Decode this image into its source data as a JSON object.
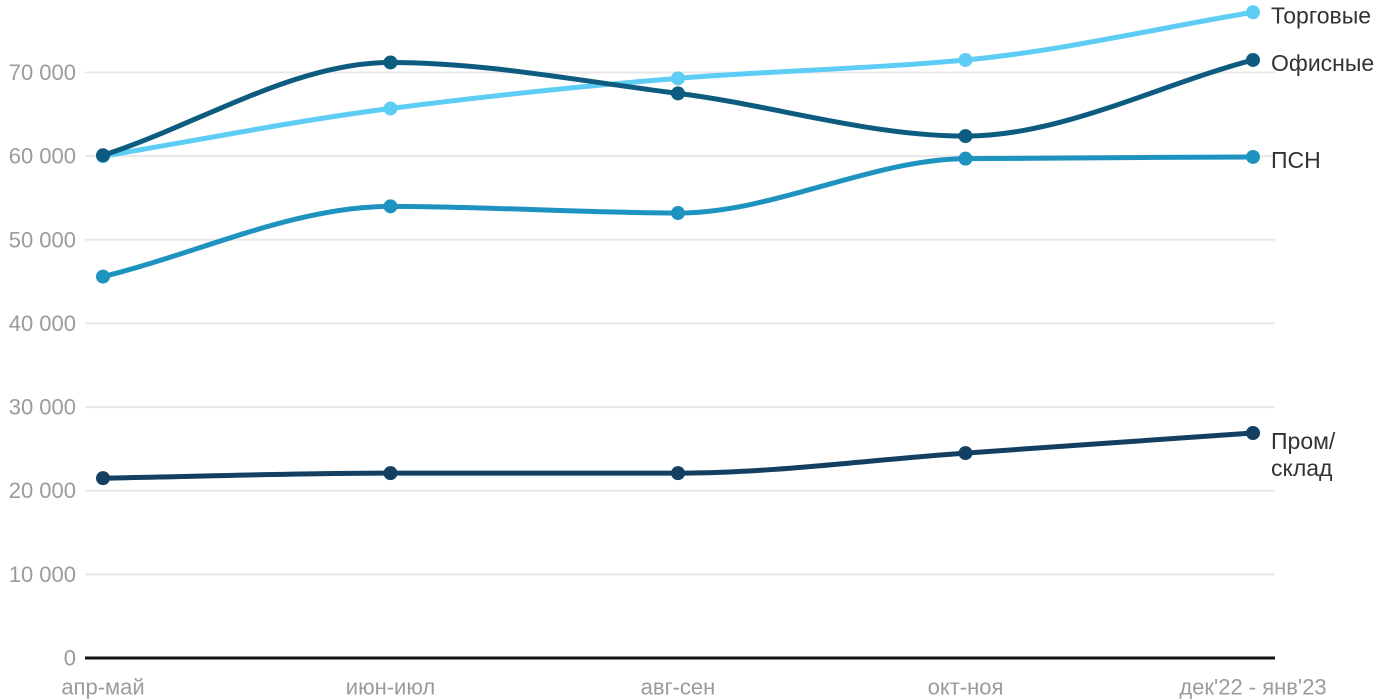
{
  "chart_data": {
    "type": "line",
    "title": "",
    "xlabel": "",
    "ylabel": "",
    "categories": [
      "апр-май",
      "июн-июл",
      "авг-сен",
      "окт-ноя",
      "дек'22 - янв'23"
    ],
    "series": [
      {
        "id": "torgovye",
        "name": "Торговые",
        "label_lines": [
          "Торговые"
        ],
        "color": "#5ecdf5",
        "values": [
          60000,
          65700,
          69300,
          71500,
          77200
        ]
      },
      {
        "id": "ofisnye",
        "name": "Офисные",
        "label_lines": [
          "Офисные"
        ],
        "color": "#0d5c80",
        "values": [
          60100,
          71200,
          67500,
          62400,
          71500
        ]
      },
      {
        "id": "psn",
        "name": "ПСН",
        "label_lines": [
          "ПСН"
        ],
        "color": "#1f93c0",
        "values": [
          45600,
          54000,
          53200,
          59700,
          59900
        ]
      },
      {
        "id": "prom-sklad",
        "name": "Пром/склад",
        "label_lines": [
          "Пром/",
          "склад"
        ],
        "color": "#133f62",
        "values": [
          21500,
          22100,
          22100,
          24500,
          26900
        ]
      }
    ],
    "ylim": [
      0,
      78500
    ],
    "yticks": [
      0,
      10000,
      20000,
      30000,
      40000,
      50000,
      60000,
      70000
    ],
    "ytick_labels": [
      "0",
      "10 000",
      "20 000",
      "30 000",
      "40 000",
      "50 000",
      "60 000",
      "70 000"
    ],
    "grid": "horizontal",
    "legend_position": "right-end-of-lines",
    "curve": "monotone",
    "colors": {
      "background": "#ffffff",
      "gridline": "#e8e8e8",
      "axis_line": "#141414",
      "tick_label": "#9b9b9b",
      "series_label": "#333333"
    }
  }
}
